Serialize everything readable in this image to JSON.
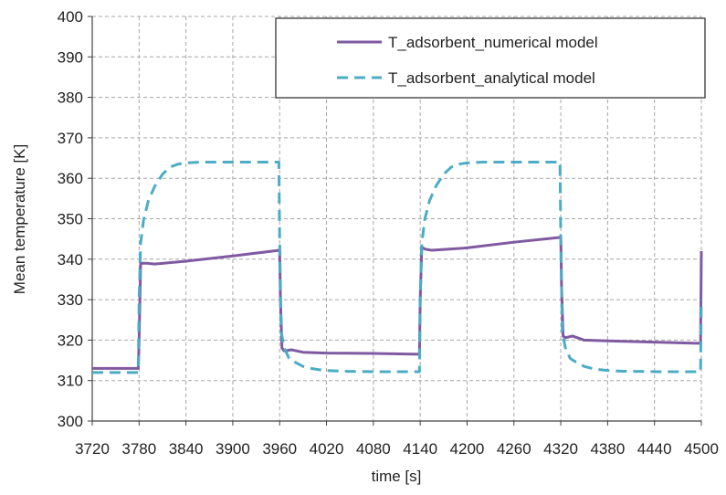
{
  "chart_data": {
    "type": "line",
    "xlabel": "time [s]",
    "ylabel": "Mean temperature [K]",
    "xlim": [
      3720,
      4500
    ],
    "ylim": [
      300,
      400
    ],
    "x_ticks": [
      3720,
      3780,
      3840,
      3900,
      3960,
      4020,
      4080,
      4140,
      4200,
      4260,
      4320,
      4380,
      4440,
      4500
    ],
    "y_ticks": [
      300,
      310,
      320,
      330,
      340,
      350,
      360,
      370,
      380,
      390,
      400
    ],
    "grid": true,
    "legend_position": "top-right",
    "series": [
      {
        "name": "T_adsorbent_numerical model",
        "color": "#7f5aa2",
        "style": "solid",
        "x": [
          3720,
          3779,
          3780,
          3782,
          3790,
          3800,
          3840,
          3900,
          3960,
          3961,
          3963,
          3966,
          3975,
          3990,
          4020,
          4080,
          4139,
          4140,
          4142,
          4146,
          4155,
          4200,
          4260,
          4320,
          4321,
          4323,
          4326,
          4335,
          4350,
          4380,
          4440,
          4499,
          4500
        ],
        "y": [
          313,
          313,
          320,
          339,
          339,
          338.8,
          339.5,
          340.8,
          342.2,
          330,
          318,
          317.3,
          317.6,
          317,
          316.8,
          316.7,
          316.5,
          330,
          343,
          342.5,
          342.2,
          342.8,
          344.2,
          345.4,
          333,
          321,
          320.6,
          321,
          320,
          319.8,
          319.5,
          319.2,
          342
        ]
      },
      {
        "name": "T_adsorbent_analytical model",
        "color": "#4bacc6",
        "style": "dashed",
        "x": [
          3720,
          3779,
          3780,
          3782,
          3786,
          3792,
          3800,
          3810,
          3820,
          3830,
          3840,
          3860,
          3900,
          3959,
          3960,
          3962,
          3966,
          3972,
          3980,
          3990,
          4000,
          4010,
          4020,
          4040,
          4080,
          4139,
          4140,
          4142,
          4146,
          4152,
          4160,
          4170,
          4180,
          4190,
          4200,
          4220,
          4260,
          4319,
          4320,
          4322,
          4326,
          4332,
          4340,
          4350,
          4360,
          4370,
          4380,
          4400,
          4440,
          4499,
          4500
        ],
        "y": [
          312,
          312,
          330,
          344,
          350,
          354.5,
          358,
          361,
          362.8,
          363.5,
          363.8,
          364,
          364,
          364,
          345,
          322,
          318,
          315.5,
          314.5,
          313.5,
          313,
          312.7,
          312.5,
          312.3,
          312.2,
          312.2,
          330,
          344,
          350,
          354.5,
          358,
          361,
          362.8,
          363.5,
          363.8,
          364,
          364,
          364,
          345,
          322,
          318,
          315.5,
          314.5,
          313.5,
          313,
          312.7,
          312.5,
          312.3,
          312.2,
          312.2,
          330
        ]
      }
    ]
  }
}
